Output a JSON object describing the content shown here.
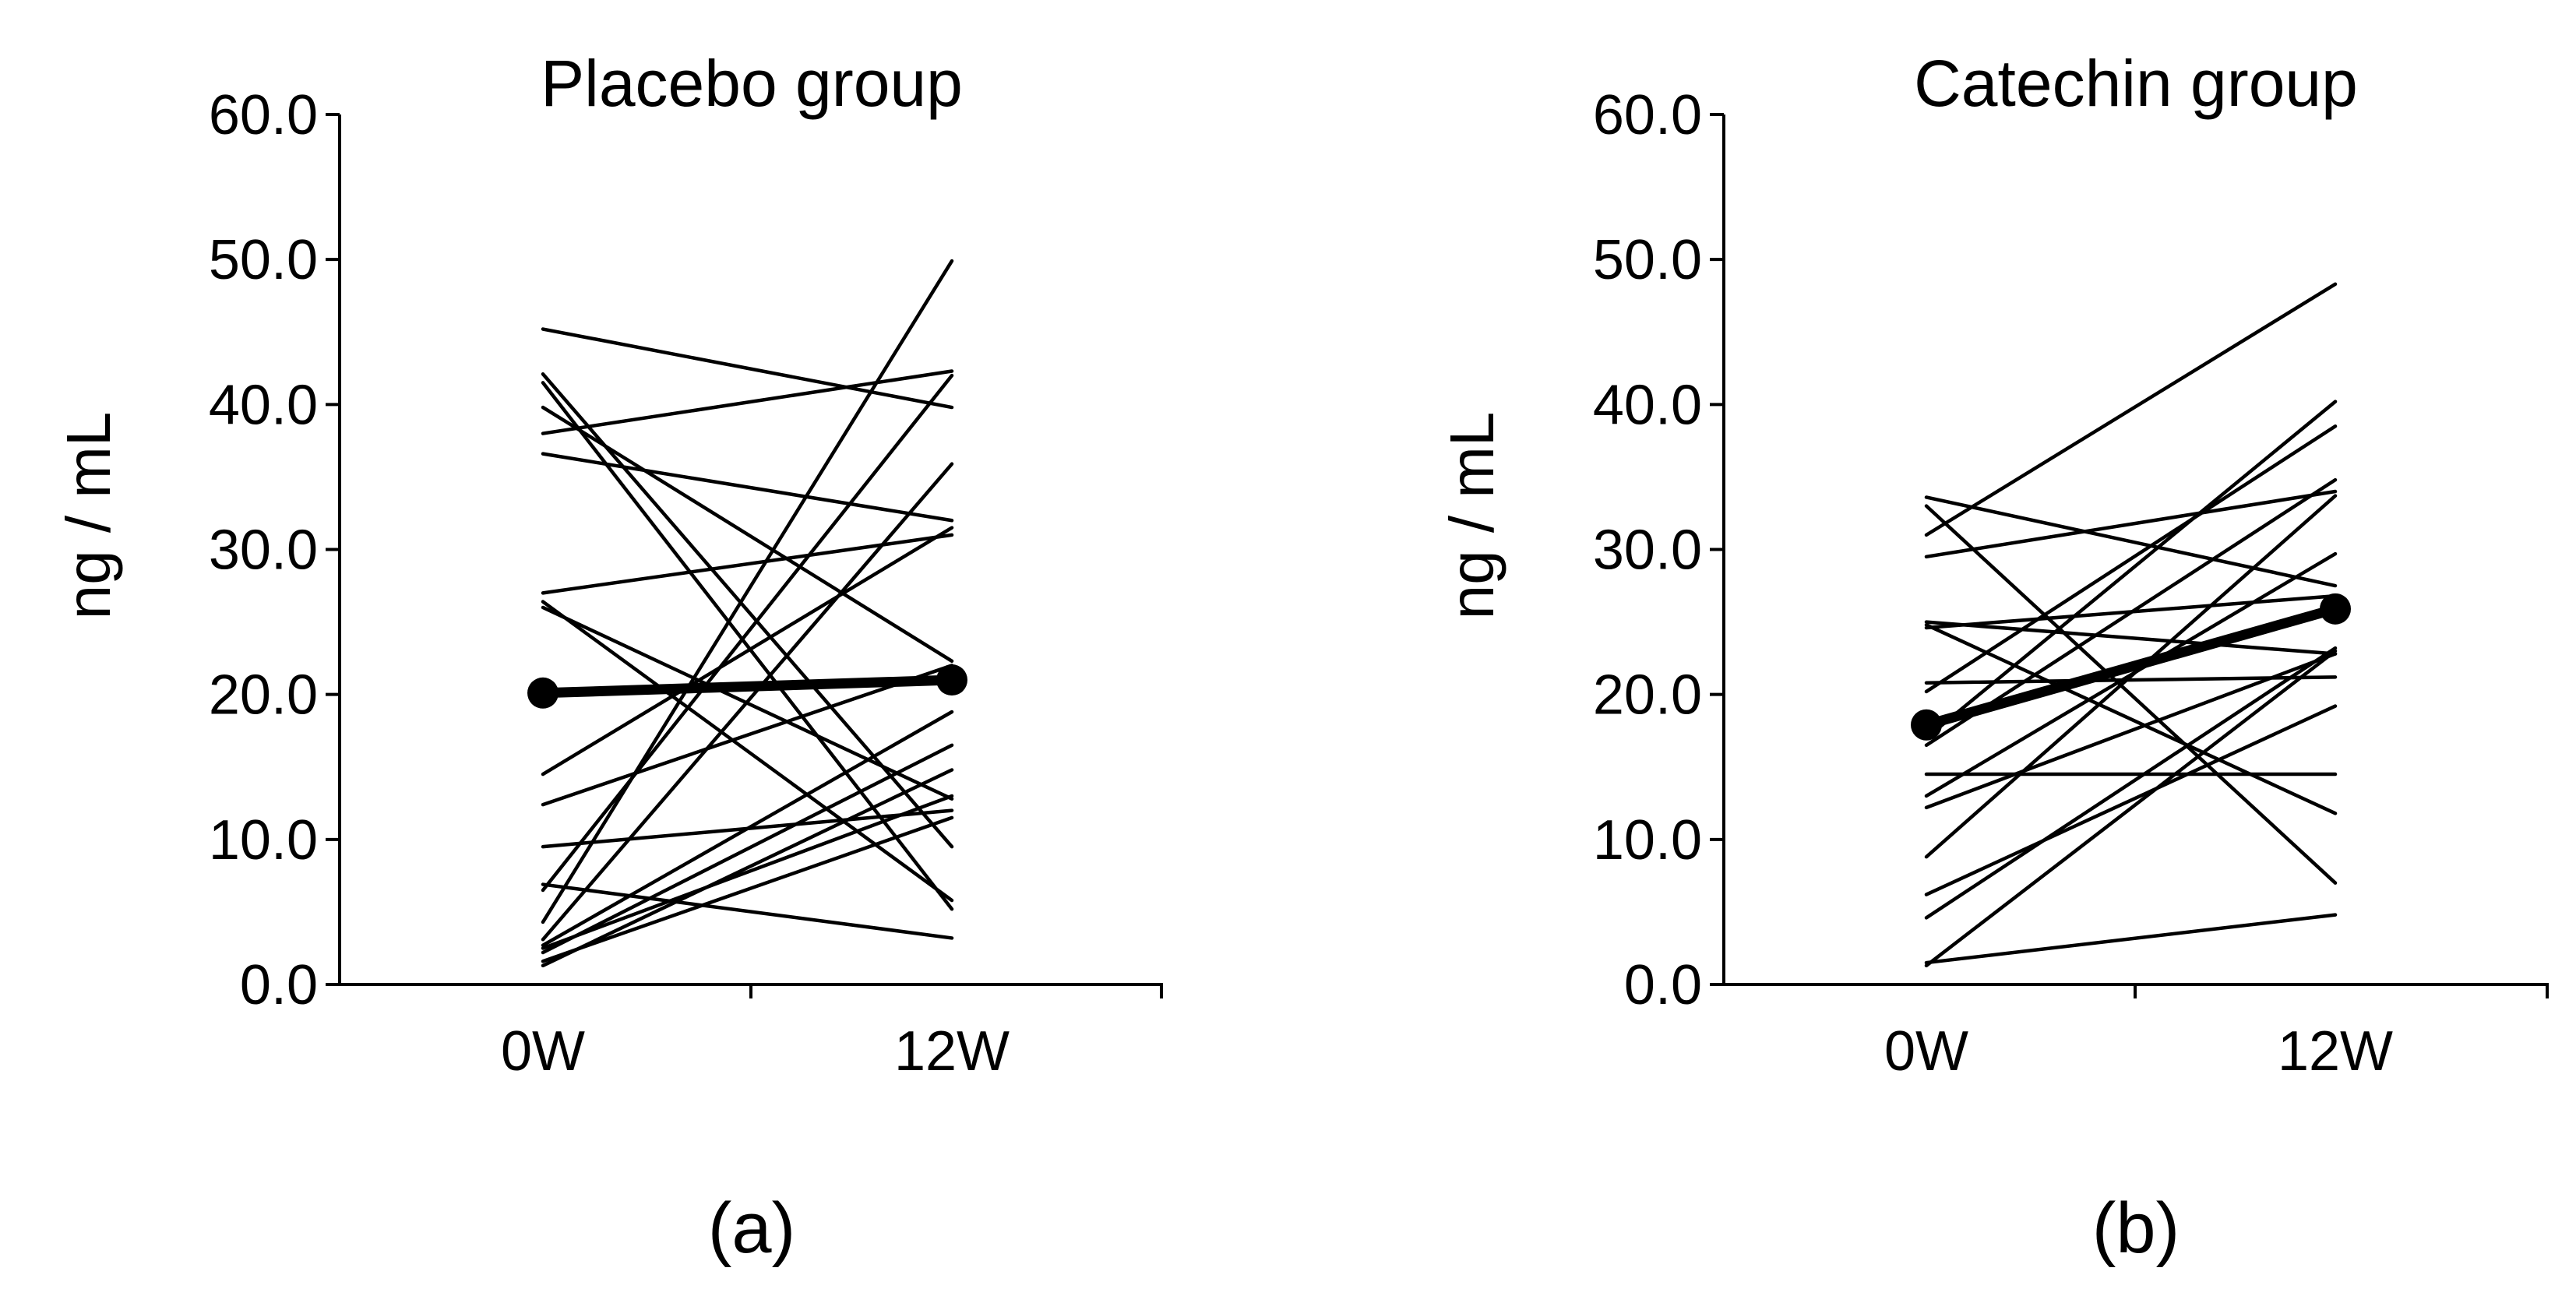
{
  "chart_data": [
    {
      "type": "line",
      "panel_label": "(a)",
      "title": "Placebo group",
      "xlabel": "",
      "ylabel": "ng / mL",
      "categories": [
        "0W",
        "12W"
      ],
      "ylim": [
        0,
        60
      ],
      "yticks": [
        "0.0",
        "10.0",
        "20.0",
        "30.0",
        "40.0",
        "50.0",
        "60.0"
      ],
      "grid": false,
      "individual_series": [
        [
          45.2,
          39.8
        ],
        [
          42.1,
          9.5
        ],
        [
          41.5,
          5.2
        ],
        [
          39.8,
          22.3
        ],
        [
          38.0,
          42.3
        ],
        [
          36.6,
          32.0
        ],
        [
          27.0,
          31.0
        ],
        [
          26.4,
          5.8
        ],
        [
          26.0,
          12.8
        ],
        [
          14.5,
          31.5
        ],
        [
          12.4,
          22.0
        ],
        [
          9.5,
          12.0
        ],
        [
          6.9,
          3.2
        ],
        [
          6.5,
          42.0
        ],
        [
          4.3,
          49.9
        ],
        [
          3.1,
          35.9
        ],
        [
          2.7,
          18.8
        ],
        [
          2.5,
          13.0
        ],
        [
          2.2,
          16.5
        ],
        [
          1.6,
          11.5
        ],
        [
          1.3,
          14.8
        ]
      ],
      "mean_series": {
        "name": "Mean",
        "values": [
          20.1,
          21.0
        ]
      }
    },
    {
      "type": "line",
      "panel_label": "(b)",
      "title": "Catechin group",
      "xlabel": "",
      "ylabel": "ng / mL",
      "categories": [
        "0W",
        "12W"
      ],
      "ylim": [
        0,
        60
      ],
      "yticks": [
        "0.0",
        "10.0",
        "20.0",
        "30.0",
        "40.0",
        "50.0",
        "60.0"
      ],
      "grid": false,
      "individual_series": [
        [
          33.6,
          27.5
        ],
        [
          33.0,
          7.0
        ],
        [
          31.0,
          48.3
        ],
        [
          29.5,
          34.0
        ],
        [
          25.0,
          22.8
        ],
        [
          24.6,
          26.8
        ],
        [
          24.8,
          11.8
        ],
        [
          20.8,
          21.2
        ],
        [
          20.2,
          38.5
        ],
        [
          17.0,
          40.2
        ],
        [
          16.5,
          34.8
        ],
        [
          14.5,
          14.5
        ],
        [
          13.0,
          29.7
        ],
        [
          12.2,
          22.8
        ],
        [
          8.8,
          33.7
        ],
        [
          6.2,
          19.2
        ],
        [
          4.6,
          23.2
        ],
        [
          1.5,
          4.8
        ],
        [
          1.3,
          23.0
        ]
      ],
      "mean_series": {
        "name": "Mean",
        "values": [
          17.9,
          25.9
        ]
      }
    }
  ]
}
